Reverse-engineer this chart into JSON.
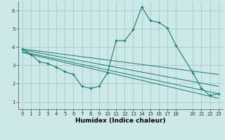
{
  "xlabel": "Humidex (Indice chaleur)",
  "bg_color": "#cce8e8",
  "grid_color": "#aacfcf",
  "line_color": "#1a7a6e",
  "series": [
    [
      0,
      3.9
    ],
    [
      1,
      3.6
    ],
    [
      2,
      3.2
    ],
    [
      3,
      3.1
    ],
    [
      4,
      2.9
    ],
    [
      5,
      2.65
    ],
    [
      6,
      2.5
    ],
    [
      7,
      1.85
    ],
    [
      8,
      1.75
    ],
    [
      9,
      1.85
    ],
    [
      10,
      2.6
    ],
    [
      11,
      4.35
    ],
    [
      12,
      4.35
    ],
    [
      13,
      4.95
    ],
    [
      14,
      6.2
    ],
    [
      15,
      5.45
    ],
    [
      16,
      5.35
    ],
    [
      17,
      5.05
    ],
    [
      18,
      4.1
    ],
    [
      20,
      2.6
    ],
    [
      21,
      1.75
    ],
    [
      22,
      1.35
    ],
    [
      23,
      1.45
    ]
  ],
  "trend_lines": [
    {
      "x": [
        0,
        23
      ],
      "y": [
        3.9,
        2.5
      ]
    },
    {
      "x": [
        0,
        23
      ],
      "y": [
        3.85,
        1.85
      ]
    },
    {
      "x": [
        0,
        23
      ],
      "y": [
        3.75,
        1.45
      ]
    },
    {
      "x": [
        0,
        23
      ],
      "y": [
        3.7,
        1.2
      ]
    }
  ],
  "xlim": [
    -0.5,
    23.5
  ],
  "ylim": [
    0.6,
    6.5
  ],
  "xticks": [
    0,
    1,
    2,
    3,
    4,
    5,
    6,
    7,
    8,
    9,
    10,
    11,
    12,
    13,
    14,
    15,
    16,
    17,
    18,
    20,
    21,
    22,
    23
  ],
  "yticks": [
    1,
    2,
    3,
    4,
    5,
    6
  ],
  "tick_fontsize": 5.0,
  "xlabel_fontsize": 6.5
}
